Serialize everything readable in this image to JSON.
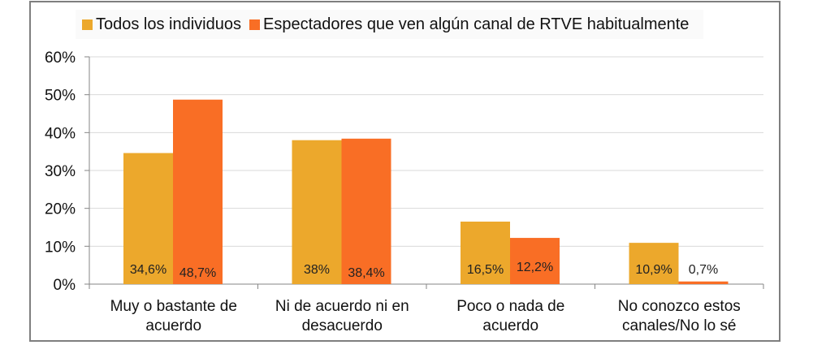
{
  "chart_data": {
    "type": "bar",
    "title": "",
    "xlabel": "",
    "ylabel": "",
    "ylim": [
      0,
      60
    ],
    "yticks": [
      "0%",
      "10%",
      "20%",
      "30%",
      "40%",
      "50%",
      "60%"
    ],
    "grid": true,
    "legend_position": "top",
    "categories": [
      [
        "Muy o bastante de",
        "acuerdo"
      ],
      [
        "Ni de acuerdo ni en",
        "desacuerdo"
      ],
      [
        "Poco o nada de",
        "acuerdo"
      ],
      [
        "No conozco estos",
        "canales/No lo sé"
      ]
    ],
    "series": [
      {
        "name": "Todos los individuos",
        "color": "#ECA82C",
        "values": [
          34.6,
          38,
          16.5,
          10.9
        ],
        "labels": [
          "34,6%",
          "38%",
          "16,5%",
          "10,9%"
        ]
      },
      {
        "name": "Espectadores que ven algún canal de RTVE habitualmente",
        "color": "#F96E25",
        "values": [
          48.7,
          38.4,
          12.2,
          0.7
        ],
        "labels": [
          "48,7%",
          "38,4%",
          "12,2%",
          "0,7%"
        ]
      }
    ]
  }
}
